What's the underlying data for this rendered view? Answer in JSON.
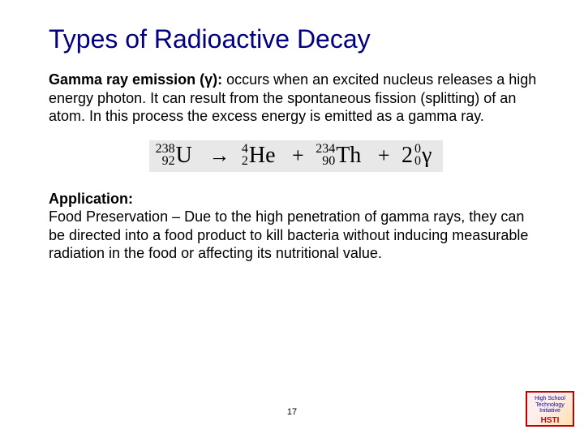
{
  "title": "Types of Radioactive Decay",
  "para1_lead": "Gamma ray emission (γ):",
  "para1_rest": " occurs when an excited nucleus releases a high energy photon.  It can result from the spontaneous fission (splitting) of an atom. In this process the excess energy is emitted as a gamma ray.",
  "equation": {
    "reactant": {
      "mass": "238",
      "atomic": "92",
      "symbol": "U"
    },
    "p1": {
      "mass": "4",
      "atomic": "2",
      "symbol": "He"
    },
    "p2": {
      "mass": "234",
      "atomic": "90",
      "symbol": "Th"
    },
    "gamma": {
      "coef": "2",
      "mass": "0",
      "atomic": "0",
      "symbol": "γ"
    }
  },
  "para2_lead": "Application:",
  "para2_rest": "Food Preservation – Due to the high penetration of gamma rays, they can be directed into a food product to kill bacteria without inducing measurable radiation in the food or affecting its nutritional value.",
  "page_number": "17",
  "logo_line1": "High School",
  "logo_line2": "Technology",
  "logo_line3": "Initiative",
  "logo_abbr": "HSTI"
}
